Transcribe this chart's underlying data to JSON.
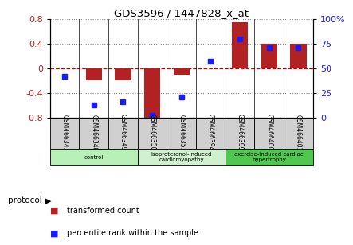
{
  "title": "GDS3596 / 1447828_x_at",
  "samples": [
    "GSM466341",
    "GSM466348",
    "GSM466349",
    "GSM466350",
    "GSM466351",
    "GSM466394",
    "GSM466399",
    "GSM466400",
    "GSM466401"
  ],
  "bar_values": [
    0.0,
    -0.2,
    -0.2,
    -0.8,
    -0.1,
    0.0,
    0.75,
    0.4,
    0.4
  ],
  "percentile_values": [
    42,
    13,
    16,
    2,
    21,
    57,
    80,
    71,
    71
  ],
  "ylim_left": [
    -0.8,
    0.8
  ],
  "ylim_right": [
    0,
    100
  ],
  "yticks_left": [
    -0.8,
    -0.4,
    0.0,
    0.4,
    0.8
  ],
  "yticks_right": [
    0,
    25,
    50,
    75,
    100
  ],
  "bar_color": "#b22222",
  "dot_color": "#1a1aff",
  "zero_line_color": "#cc0000",
  "dot_line_color": "#555555",
  "groups": [
    {
      "label": "control",
      "start": 0,
      "end": 3,
      "color": "#b8f0b8"
    },
    {
      "label": "isoproterenol-induced\ncardiomyopathy",
      "start": 3,
      "end": 6,
      "color": "#d0f0d0"
    },
    {
      "label": "exercise-induced cardiac\nhypertrophy",
      "start": 6,
      "end": 9,
      "color": "#50c850"
    }
  ],
  "legend_items": [
    {
      "label": "transformed count",
      "color": "#b22222"
    },
    {
      "label": "percentile rank within the sample",
      "color": "#1a1aff"
    }
  ],
  "protocol_label": "protocol",
  "sample_bg": "#d0d0d0"
}
